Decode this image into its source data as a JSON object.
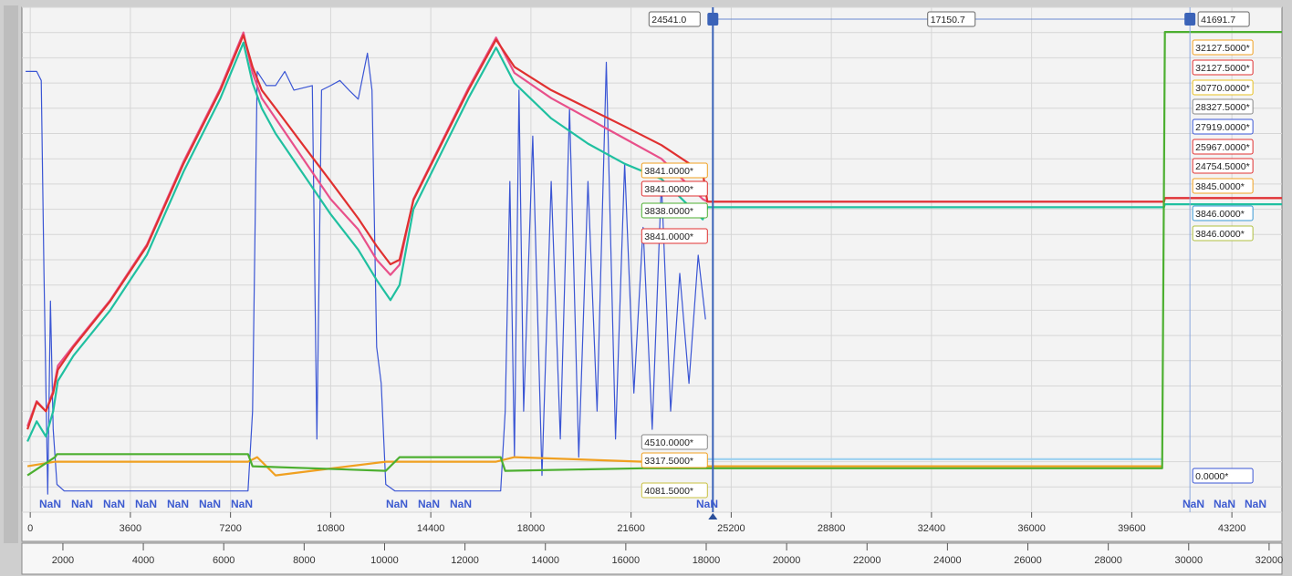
{
  "chart_data": {
    "type": "line",
    "xlim": [
      -300,
      45000
    ],
    "xticks": [
      0,
      3600,
      7200,
      10800,
      14400,
      18000,
      21600,
      25200,
      28800,
      32400,
      36000,
      39600,
      43200
    ],
    "x2lim": [
      980,
      32320
    ],
    "x2ticks": [
      2000,
      4000,
      6000,
      8000,
      10000,
      12000,
      14000,
      16000,
      18000,
      20000,
      22000,
      24000,
      26000,
      28000,
      30000,
      32000
    ],
    "ylim": [
      0,
      100
    ],
    "yticks": [
      0,
      5,
      10,
      15,
      20,
      25,
      30,
      35,
      40,
      45,
      50,
      55,
      60,
      65,
      70,
      75,
      80,
      85,
      90,
      95,
      100
    ],
    "grid": true,
    "series": [
      {
        "color": "#3a55d4",
        "x": [
          -165,
          231,
          396,
          495,
          628,
          727,
          826,
          958,
          1222,
          7828,
          7993,
          8159,
          8489,
          8819,
          9149,
          9480,
          10140,
          10305,
          10471,
          10801,
          11131,
          11461,
          11792,
          12122,
          12287,
          12452,
          12618,
          12783,
          13113,
          16911,
          17077,
          17242,
          17407,
          17572,
          17737,
          18067,
          18398,
          18728,
          19058,
          19388,
          19719,
          20049,
          20379,
          20709,
          21040,
          21370,
          21700,
          22031,
          22361,
          22691,
          23021,
          23351,
          23682,
          24012,
          24277
        ],
        "values": [
          87.3,
          87.3,
          85.5,
          47.3,
          3.6,
          41.8,
          16.4,
          5.5,
          4.2,
          4.2,
          20,
          87.3,
          84.5,
          84.5,
          87.3,
          83.6,
          84.5,
          14.5,
          83.6,
          84.5,
          85.5,
          83.6,
          81.8,
          90.9,
          83.6,
          32.7,
          25.5,
          5.5,
          4.2,
          4.2,
          20,
          65.5,
          10.9,
          83.6,
          20,
          74.5,
          7.3,
          65.5,
          14.5,
          80,
          10.9,
          65.5,
          20,
          89.1,
          14.5,
          69.1,
          23.6,
          56.4,
          16.4,
          65.5,
          20,
          47.3,
          25.5,
          50.9,
          38.2
        ]
      },
      {
        "color": "#e8508a",
        "x": [
          -99,
          231,
          562,
          826,
          991,
          1552,
          2874,
          4195,
          5516,
          6837,
          7663,
          7993,
          8324,
          8819,
          9810,
          10801,
          11792,
          12452,
          12948,
          13278,
          13774,
          14764,
          15755,
          16746,
          17407,
          18728,
          20049,
          21370,
          22691,
          24178,
          24343,
          40759,
          40792,
          45000
        ],
        "values": [
          17,
          22,
          20,
          24,
          29,
          33,
          42,
          53,
          69.5,
          84,
          95,
          87,
          82,
          78,
          70,
          62,
          56,
          50,
          47,
          49,
          62,
          73,
          84,
          94,
          87,
          82,
          78,
          74,
          70,
          62,
          61.5,
          61.5,
          62.2,
          62.2
        ]
      },
      {
        "color": "#e03030",
        "x": [
          -99,
          231,
          562,
          826,
          991,
          1552,
          2874,
          4195,
          5516,
          6837,
          7663,
          7993,
          8324,
          8819,
          9810,
          10801,
          11792,
          12452,
          12948,
          13278,
          13774,
          14764,
          15755,
          16746,
          17407,
          18728,
          20049,
          21370,
          22691,
          24178,
          24343,
          40759,
          40792,
          45000
        ],
        "values": [
          16.4,
          21.8,
          20,
          23.6,
          28.2,
          32.7,
          41.8,
          52.7,
          69.1,
          83.6,
          94.5,
          88.2,
          83.6,
          80,
          72.7,
          65.5,
          58.2,
          52.7,
          49.1,
          50,
          61.8,
          72.7,
          83.6,
          93.6,
          88.2,
          83.6,
          80,
          76.4,
          72.7,
          67.3,
          61.5,
          61.5,
          62.2,
          62.2
        ]
      },
      {
        "color": "#20c0a0",
        "x": [
          -99,
          231,
          562,
          826,
          991,
          1552,
          2874,
          4195,
          5516,
          6837,
          7663,
          7993,
          8324,
          8819,
          9810,
          10801,
          11792,
          12452,
          12948,
          13278,
          13774,
          14764,
          15755,
          16746,
          17407,
          18728,
          20049,
          21370,
          22691,
          24178,
          24343,
          40759,
          40792,
          45000
        ],
        "values": [
          14,
          18,
          15,
          20,
          26,
          31,
          40,
          51,
          67.5,
          82,
          93,
          85,
          80,
          75,
          67,
          59,
          52,
          46,
          42,
          45,
          60,
          71,
          82,
          92,
          85,
          78,
          73,
          69,
          66,
          58,
          60.4,
          60.4,
          61,
          61
        ]
      },
      {
        "color": "#f0a020",
        "x": [
          -99,
          892,
          7828,
          8159,
          8819,
          12783,
          13443,
          16746,
          17407,
          22031,
          24343,
          40693
        ],
        "values": [
          9.1,
          10,
          10,
          10.9,
          7.3,
          10,
          10,
          10,
          10.9,
          10,
          9.1,
          9.1
        ]
      },
      {
        "color": "#9ad0f0",
        "x": [
          24343,
          40693
        ],
        "values": [
          10.5,
          10.5
        ]
      },
      {
        "color": "#4caf30",
        "x": [
          -99,
          892,
          958,
          7828,
          7993,
          12783,
          13278,
          16911,
          17077,
          22031,
          24343,
          40693,
          40792,
          45000
        ],
        "values": [
          7.3,
          10.9,
          11.5,
          11.5,
          9.1,
          8.2,
          10.9,
          10.9,
          8.2,
          8.7,
          8.7,
          8.7,
          95.1,
          95.1
        ]
      }
    ],
    "cursors": [
      {
        "position": {
          "value": 24541.0,
          "label": "24541.0"
        },
        "readouts": [
          {
            "text": "3841.0000*",
            "color": "#f0a020"
          },
          {
            "text": "3841.0000*",
            "color": "#e03030"
          },
          {
            "text": "3838.0000*",
            "color": "#4caf30"
          },
          {
            "text": "3841.0000*",
            "color": "#e03030"
          },
          {
            "text": "4510.0000*",
            "color": "#888888"
          },
          {
            "text": "3317.5000*",
            "color": "#f0a020"
          },
          {
            "text": "4081.5000*",
            "color": "#c8c040"
          }
        ]
      },
      {
        "position": {
          "value": 41691.7,
          "label": "41691.7"
        },
        "readouts": [
          {
            "text": "32127.5000*",
            "color": "#f0a020"
          },
          {
            "text": "32127.5000*",
            "color": "#e03030"
          },
          {
            "text": "30770.0000*",
            "color": "#e8c020"
          },
          {
            "text": "28327.5000*",
            "color": "#888888"
          },
          {
            "text": "27919.0000*",
            "color": "#3a55d4"
          },
          {
            "text": "25967.0000*",
            "color": "#e03030"
          },
          {
            "text": "24754.5000*",
            "color": "#e03030"
          },
          {
            "text": "3845.0000*",
            "color": "#f0a020"
          },
          {
            "text": "3846.0000*",
            "color": "#3a9ad4"
          },
          {
            "text": "3846.0000*",
            "color": "#b0c040"
          },
          {
            "text": "0.0000*",
            "color": "#3a55d4"
          }
        ]
      }
    ],
    "cursor_delta": "17150.7",
    "nan_labels": [
      "NaN",
      "NaN",
      "NaN",
      "NaN",
      "NaN",
      "NaN",
      "NaN",
      "NaN",
      "NaN",
      "NaN",
      "NaN",
      "NaN",
      "NaN",
      "NaN"
    ]
  }
}
